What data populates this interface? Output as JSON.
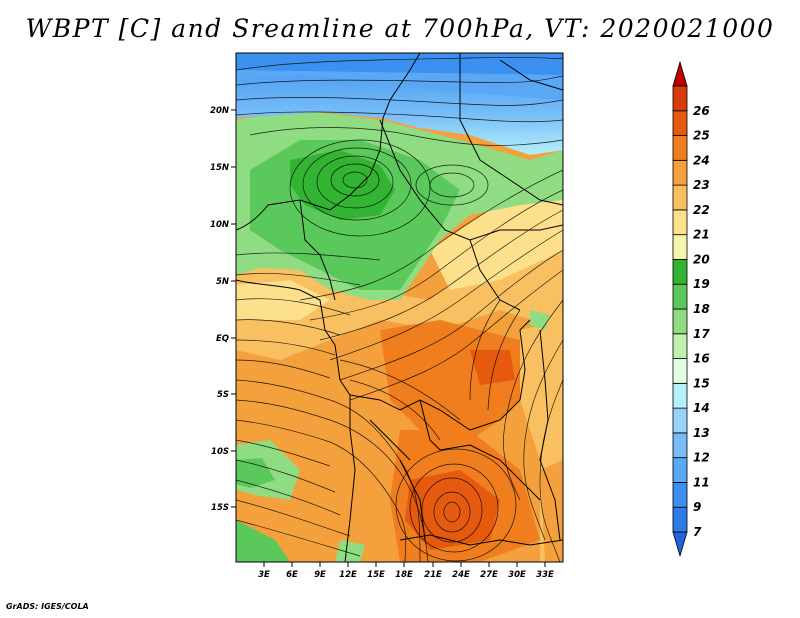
{
  "title": "WBPT [C] and Sreamline at 700hPa, VT: 2020021000",
  "credit": "GrADS: IGES/COLA",
  "map": {
    "lat_labels": [
      "20N",
      "15N",
      "10N",
      "5N",
      "EQ",
      "5S",
      "10S",
      "15S"
    ],
    "lon_labels": [
      "3E",
      "6E",
      "9E",
      "12E",
      "15E",
      "18E",
      "21E",
      "24E",
      "27E",
      "30E",
      "33E"
    ]
  },
  "colorbar": {
    "labels": [
      "7",
      "9",
      "11",
      "12",
      "13",
      "14",
      "15",
      "16",
      "17",
      "18",
      "19",
      "20",
      "21",
      "22",
      "23",
      "24",
      "25",
      "26"
    ],
    "colors": [
      "#1e64dc",
      "#2b7ae6",
      "#3c91f0",
      "#5aa8f5",
      "#78bdf8",
      "#96d2fa",
      "#b4f0fa",
      "#e1ffe1",
      "#c0f0b0",
      "#90dc82",
      "#5ac85a",
      "#32b432",
      "#f6f5ad",
      "#fde08c",
      "#f8c060",
      "#f4a03c",
      "#f07d1e",
      "#e65a0f",
      "#d73c0a",
      "#c00000"
    ],
    "colors_note": "segments bottom to top; first and last are end triangles"
  }
}
